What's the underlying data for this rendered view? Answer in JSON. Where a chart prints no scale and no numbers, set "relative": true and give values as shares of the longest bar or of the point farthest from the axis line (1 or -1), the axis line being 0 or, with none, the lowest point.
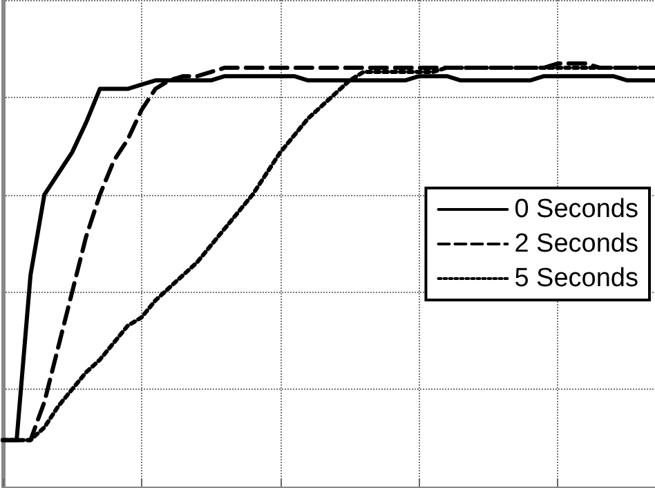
{
  "chart_data": {
    "type": "line",
    "relative": true,
    "grid": true,
    "legend": "right",
    "marker": "none",
    "categories": [
      null,
      null,
      null,
      null,
      null,
      null,
      null,
      null,
      null,
      null,
      null,
      null,
      null,
      null,
      null,
      null,
      null,
      null,
      null,
      null,
      null,
      null,
      null,
      null,
      null,
      null,
      null,
      null,
      null,
      null,
      null,
      null,
      null,
      null,
      null,
      null,
      null,
      null,
      null,
      null,
      null,
      null,
      null,
      null,
      null,
      null,
      null,
      null
    ],
    "series": [
      {
        "name": "0 Seconds",
        "color": "#000000",
        "line_style": "solid",
        "values": [
          0.11,
          0.11,
          0.5,
          0.69,
          0.74,
          0.79,
          0.86,
          0.94,
          0.94,
          0.94,
          0.95,
          0.96,
          0.96,
          0.96,
          0.96,
          0.96,
          0.97,
          0.97,
          0.97,
          0.97,
          0.97,
          0.97,
          0.96,
          0.96,
          0.96,
          0.96,
          0.96,
          0.96,
          0.96,
          0.96,
          0.97,
          0.97,
          0.97,
          0.96,
          0.96,
          0.96,
          0.96,
          0.96,
          0.96,
          0.97,
          0.97,
          0.97,
          0.97,
          0.97,
          0.97,
          0.96,
          0.96,
          0.96
        ]
      },
      {
        "name": "2 Seconds",
        "color": "#000000",
        "line_style": "dashed",
        "values": [
          0.11,
          0.11,
          0.11,
          0.2,
          0.33,
          0.46,
          0.59,
          0.69,
          0.77,
          0.82,
          0.89,
          0.94,
          0.96,
          0.97,
          0.97,
          0.98,
          0.99,
          0.99,
          0.99,
          0.99,
          0.99,
          0.99,
          0.99,
          0.99,
          0.99,
          0.99,
          0.99,
          0.99,
          0.99,
          0.99,
          0.99,
          0.99,
          0.99,
          0.99,
          0.99,
          0.99,
          0.99,
          0.99,
          0.99,
          0.99,
          1.0,
          1.0,
          1.0,
          0.99,
          0.99,
          0.99,
          0.99,
          0.99
        ]
      },
      {
        "name": "5 Seconds",
        "color": "#000000",
        "line_style": "dotted",
        "values": [
          0.11,
          0.11,
          0.11,
          0.14,
          0.19,
          0.23,
          0.27,
          0.3,
          0.34,
          0.38,
          0.4,
          0.44,
          0.47,
          0.5,
          0.53,
          0.57,
          0.61,
          0.65,
          0.69,
          0.74,
          0.79,
          0.83,
          0.87,
          0.9,
          0.93,
          0.96,
          0.98,
          0.98,
          0.98,
          0.98,
          0.98,
          0.98,
          0.99,
          0.99,
          0.99,
          0.99,
          0.99,
          0.99,
          0.99,
          0.99,
          0.99,
          0.99,
          0.99,
          0.99,
          0.99,
          0.99,
          0.99,
          0.99
        ]
      }
    ]
  }
}
